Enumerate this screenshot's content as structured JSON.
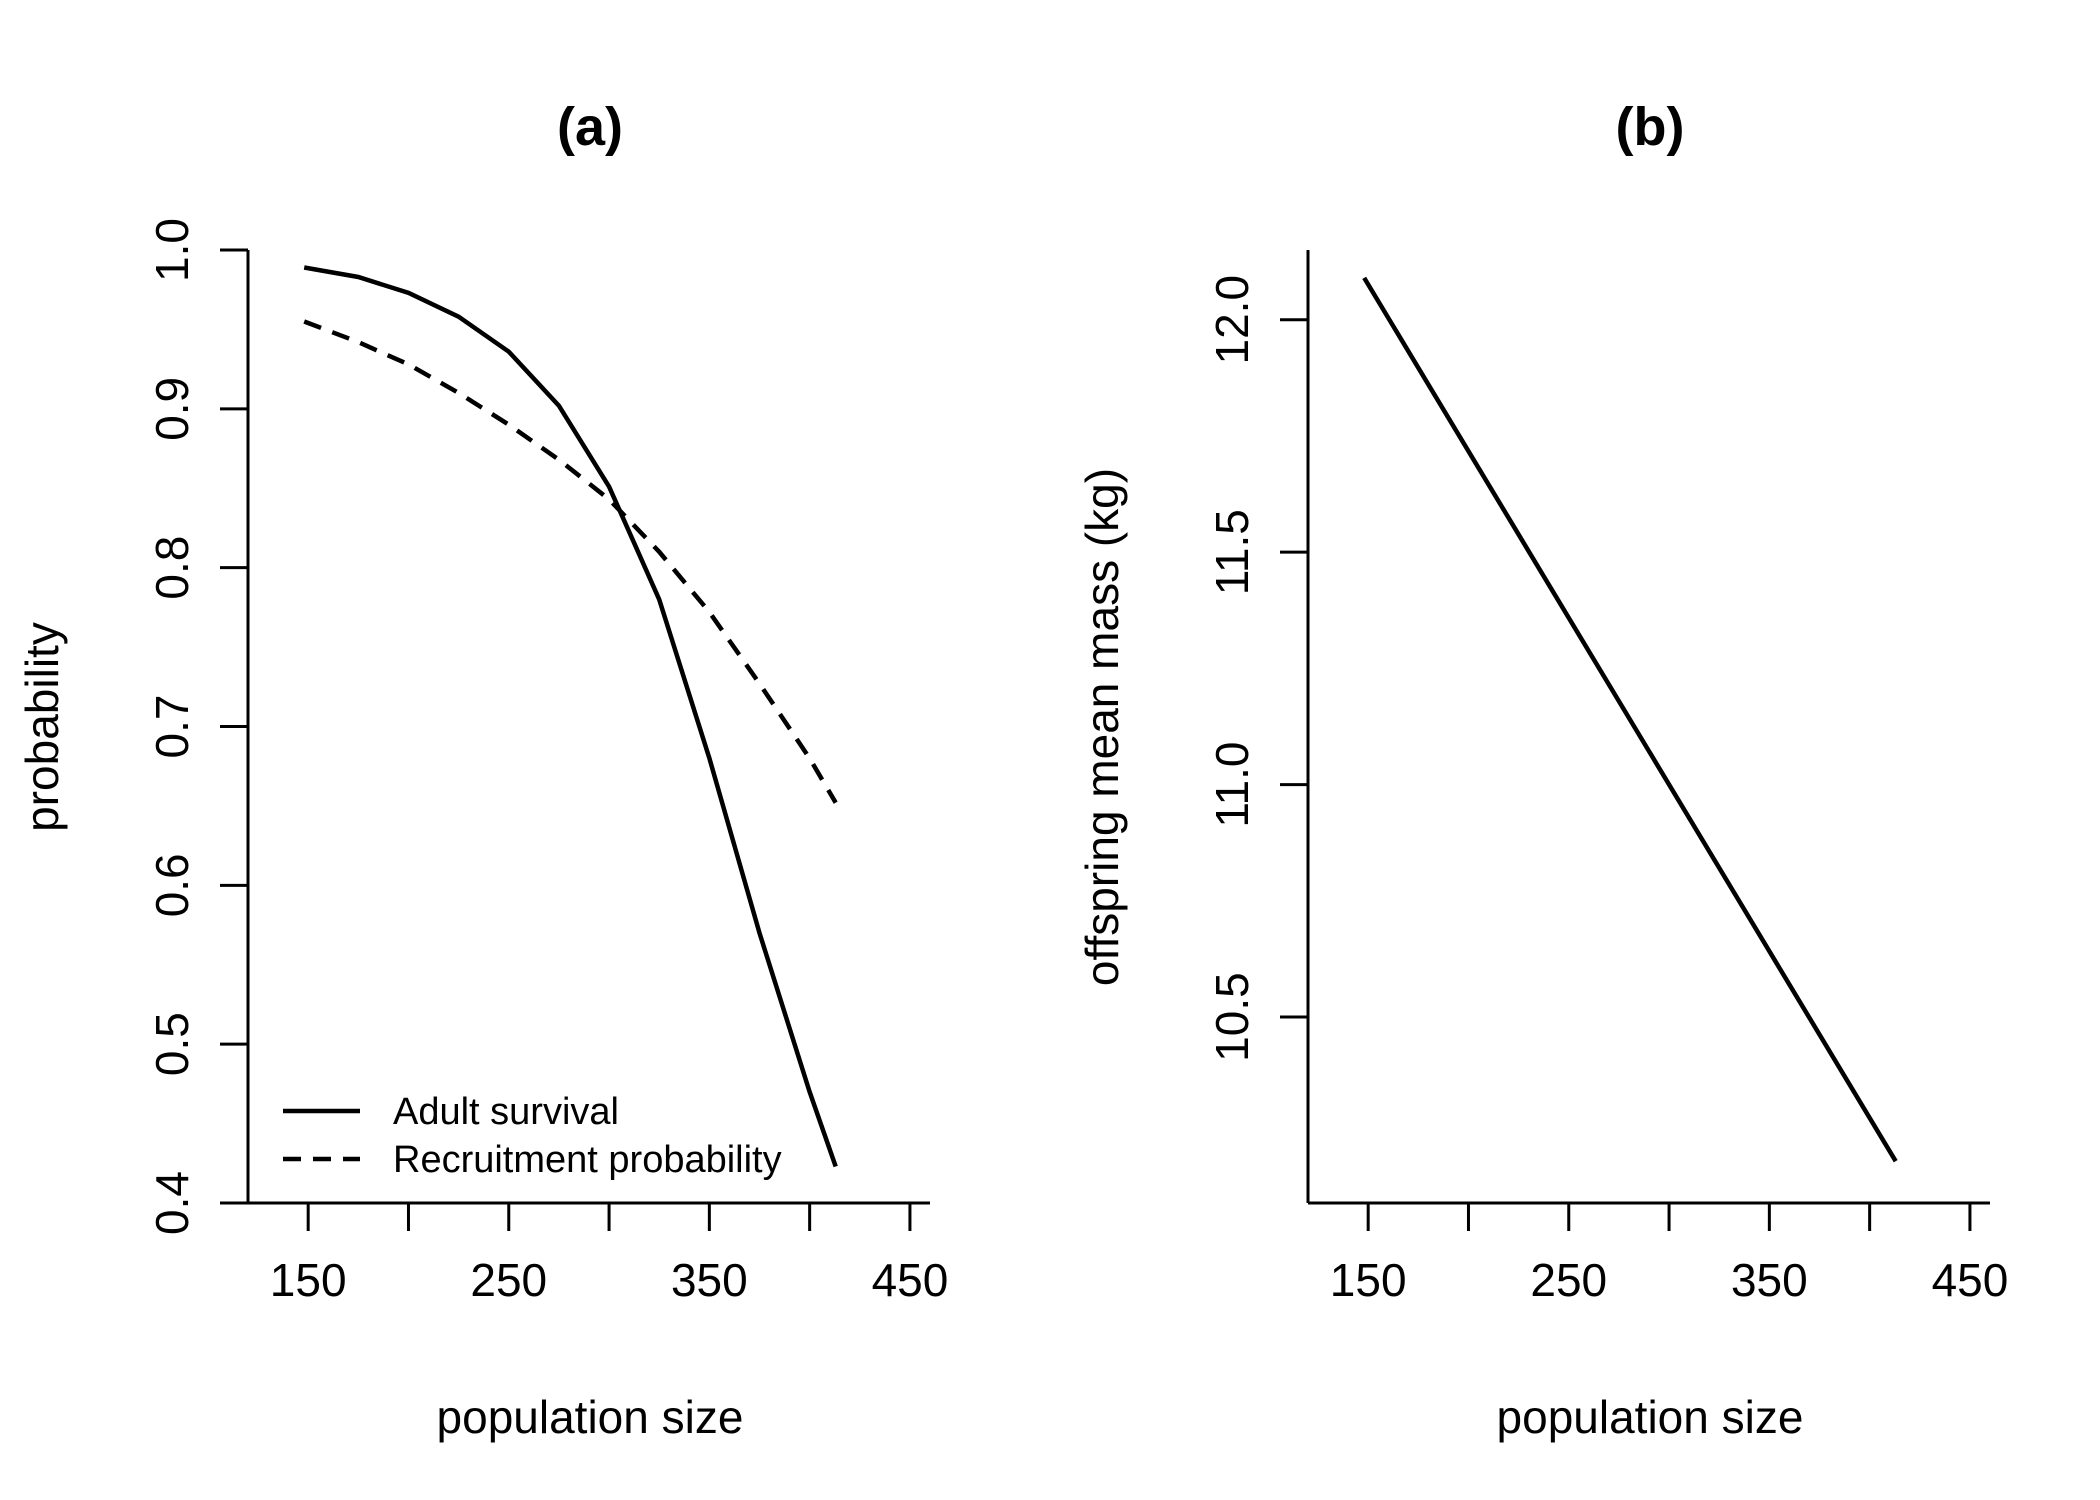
{
  "chart_data": [
    {
      "type": "line",
      "title": "(a)",
      "xlabel": "population size",
      "ylabel": "probability",
      "xlim": [
        120,
        460
      ],
      "ylim": [
        0.4,
        1.0
      ],
      "xticks": [
        150,
        200,
        250,
        300,
        350,
        400,
        450
      ],
      "xtick_labels": [
        "150",
        "",
        "250",
        "",
        "350",
        "",
        "450"
      ],
      "yticks": [
        0.4,
        0.5,
        0.6,
        0.7,
        0.8,
        0.9,
        1.0
      ],
      "ytick_labels": [
        "0.4",
        "0.5",
        "0.6",
        "0.7",
        "0.8",
        "0.9",
        "1.0"
      ],
      "grid": false,
      "legend": "bottom-left",
      "series": [
        {
          "name": "Adult survival",
          "style": "solid",
          "x": [
            148,
            175,
            200,
            225,
            250,
            275,
            300,
            325,
            350,
            375,
            400,
            413
          ],
          "y": [
            0.989,
            0.983,
            0.973,
            0.958,
            0.936,
            0.902,
            0.851,
            0.78,
            0.68,
            0.57,
            0.47,
            0.423
          ]
        },
        {
          "name": "Recruitment probability",
          "style": "dashed",
          "x": [
            148,
            175,
            200,
            225,
            250,
            275,
            300,
            325,
            350,
            375,
            400,
            413
          ],
          "y": [
            0.955,
            0.942,
            0.928,
            0.91,
            0.89,
            0.868,
            0.843,
            0.81,
            0.772,
            0.727,
            0.68,
            0.652
          ]
        }
      ]
    },
    {
      "type": "line",
      "title": "(b)",
      "xlabel": "population size",
      "ylabel": "offspring mean mass (kg)",
      "xlim": [
        120,
        460
      ],
      "ylim": [
        10.1,
        12.15
      ],
      "xticks": [
        150,
        200,
        250,
        300,
        350,
        400,
        450
      ],
      "xtick_labels": [
        "150",
        "",
        "250",
        "",
        "350",
        "",
        "450"
      ],
      "yticks": [
        10.5,
        11.0,
        11.5,
        12.0
      ],
      "ytick_labels": [
        "10.5",
        "11.0",
        "11.5",
        "12.0"
      ],
      "grid": false,
      "series": [
        {
          "style": "solid",
          "x": [
            148,
            413
          ],
          "y": [
            12.09,
            10.19
          ]
        }
      ]
    }
  ]
}
